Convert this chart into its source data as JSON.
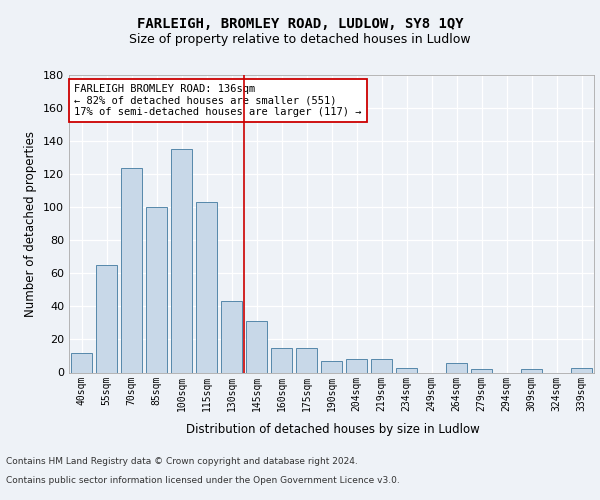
{
  "title1": "FARLEIGH, BROMLEY ROAD, LUDLOW, SY8 1QY",
  "title2": "Size of property relative to detached houses in Ludlow",
  "xlabel": "Distribution of detached houses by size in Ludlow",
  "ylabel": "Number of detached properties",
  "categories": [
    "40sqm",
    "55sqm",
    "70sqm",
    "85sqm",
    "100sqm",
    "115sqm",
    "130sqm",
    "145sqm",
    "160sqm",
    "175sqm",
    "190sqm",
    "204sqm",
    "219sqm",
    "234sqm",
    "249sqm",
    "264sqm",
    "279sqm",
    "294sqm",
    "309sqm",
    "324sqm",
    "339sqm"
  ],
  "values": [
    12,
    65,
    124,
    100,
    135,
    103,
    43,
    31,
    15,
    15,
    7,
    8,
    8,
    3,
    0,
    6,
    2,
    0,
    2,
    0,
    3
  ],
  "bar_color": "#c8d8e8",
  "bar_edge_color": "#5588aa",
  "vline_x": 6.5,
  "vline_color": "#cc0000",
  "annotation_text": "FARLEIGH BROMLEY ROAD: 136sqm\n← 82% of detached houses are smaller (551)\n17% of semi-detached houses are larger (117) →",
  "annotation_box_color": "#ffffff",
  "annotation_box_edge": "#cc0000",
  "ylim": [
    0,
    180
  ],
  "yticks": [
    0,
    20,
    40,
    60,
    80,
    100,
    120,
    140,
    160,
    180
  ],
  "footer1": "Contains HM Land Registry data © Crown copyright and database right 2024.",
  "footer2": "Contains public sector information licensed under the Open Government Licence v3.0.",
  "bg_color": "#eef2f7",
  "plot_bg_color": "#eef2f7",
  "grid_color": "#ffffff",
  "title1_fontsize": 10,
  "title2_fontsize": 9,
  "xlabel_fontsize": 8.5,
  "ylabel_fontsize": 8.5,
  "footer_fontsize": 6.5
}
